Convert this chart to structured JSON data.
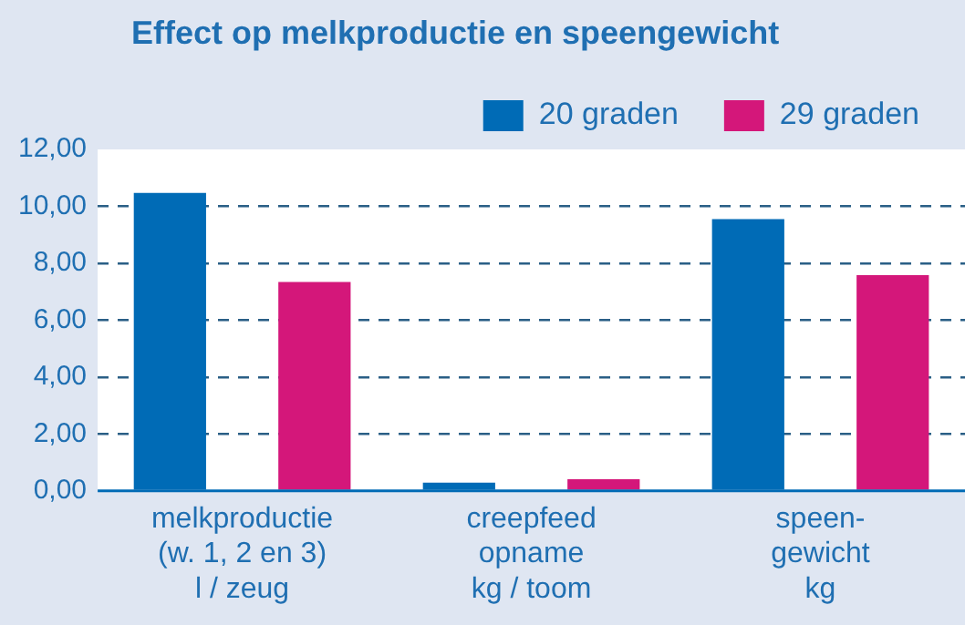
{
  "chart_data": {
    "type": "bar",
    "title": "Effect op melkproductie en speengewicht",
    "categories": [
      "melkproductie\n(w. 1, 2 en 3)\nl / zeug",
      "creepfeed\nopname\nkg / toom",
      "speen-\ngewicht\nkg"
    ],
    "series": [
      {
        "name": "20 graden",
        "color": "#006bb6",
        "values": [
          10.47,
          0.29,
          9.55
        ]
      },
      {
        "name": "29 graden",
        "color": "#d4177a",
        "values": [
          7.34,
          0.41,
          7.58
        ]
      }
    ],
    "ylim": [
      0,
      12
    ],
    "yticks": [
      {
        "value": 0,
        "label": "0,00"
      },
      {
        "value": 2,
        "label": "2,00"
      },
      {
        "value": 4,
        "label": "4,00"
      },
      {
        "value": 6,
        "label": "6,00"
      },
      {
        "value": 8,
        "label": "8,00"
      },
      {
        "value": 10,
        "label": "10,00"
      },
      {
        "value": 12,
        "label": "12,00"
      }
    ],
    "grid": "y",
    "legend": "top right"
  }
}
